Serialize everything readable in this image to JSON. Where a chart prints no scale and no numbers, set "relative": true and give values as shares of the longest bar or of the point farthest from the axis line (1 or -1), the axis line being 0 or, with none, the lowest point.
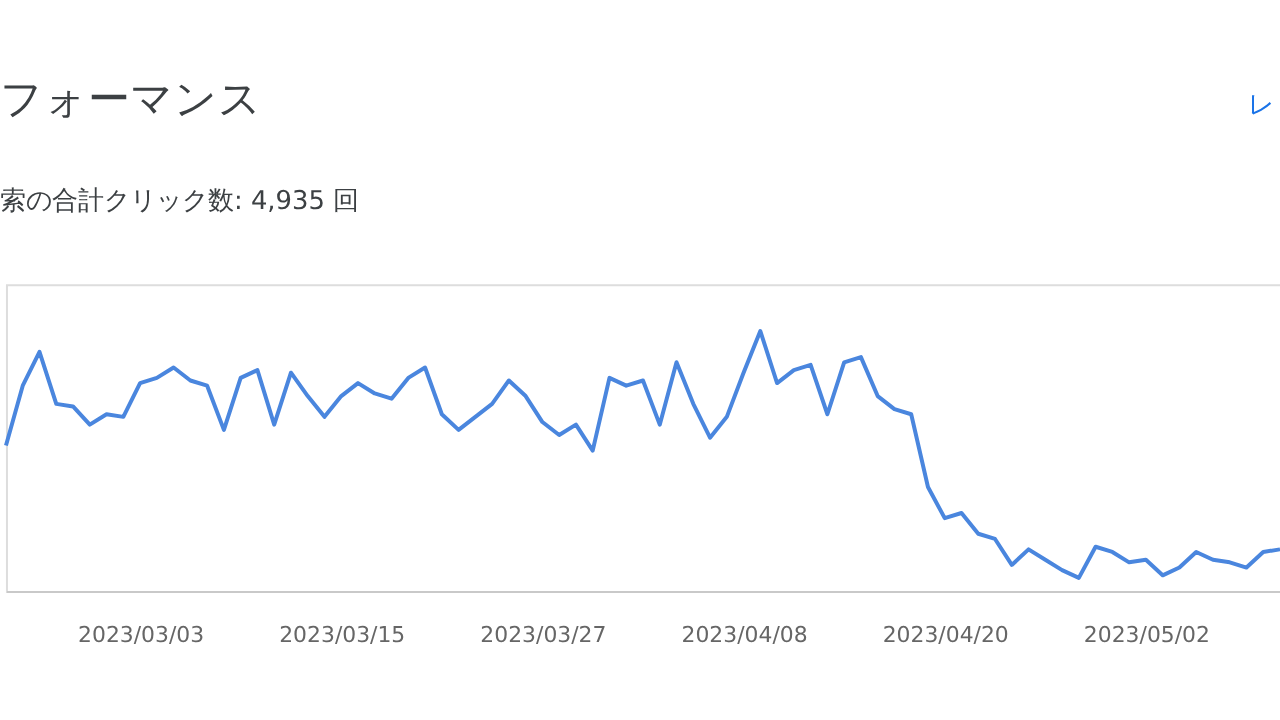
{
  "chart_data": {
    "type": "line",
    "title": "フォーマンス",
    "subtitle": "索の合計クリック数: 4,935 回",
    "annotations": [
      "レ"
    ],
    "relative": true,
    "marker": "none",
    "line_style": "solid",
    "x": [
      "2023-02-23",
      "2023-02-24",
      "2023-02-25",
      "2023-02-26",
      "2023-02-27",
      "2023-02-28",
      "2023-03-01",
      "2023-03-02",
      "2023-03-03",
      "2023-03-04",
      "2023-03-05",
      "2023-03-06",
      "2023-03-07",
      "2023-03-08",
      "2023-03-09",
      "2023-03-10",
      "2023-03-11",
      "2023-03-12",
      "2023-03-13",
      "2023-03-14",
      "2023-03-15",
      "2023-03-16",
      "2023-03-17",
      "2023-03-18",
      "2023-03-19",
      "2023-03-20",
      "2023-03-21",
      "2023-03-22",
      "2023-03-23",
      "2023-03-24",
      "2023-03-25",
      "2023-03-26",
      "2023-03-27",
      "2023-03-28",
      "2023-03-29",
      "2023-03-30",
      "2023-03-31",
      "2023-04-01",
      "2023-04-02",
      "2023-04-03",
      "2023-04-04",
      "2023-04-05",
      "2023-04-06",
      "2023-04-07",
      "2023-04-08",
      "2023-04-09",
      "2023-04-10",
      "2023-04-11",
      "2023-04-12",
      "2023-04-13",
      "2023-04-14",
      "2023-04-15",
      "2023-04-16",
      "2023-04-17",
      "2023-04-18",
      "2023-04-19",
      "2023-04-20",
      "2023-04-21",
      "2023-04-22",
      "2023-04-23",
      "2023-04-24",
      "2023-04-25",
      "2023-04-26",
      "2023-04-27",
      "2023-04-28",
      "2023-04-29",
      "2023-04-30",
      "2023-05-01",
      "2023-05-02",
      "2023-05-03",
      "2023-05-04",
      "2023-05-05",
      "2023-05-06",
      "2023-05-07",
      "2023-05-08",
      "2023-05-09",
      "2023-05-10"
    ],
    "xlim": [
      "2023-02-23",
      "2023-05-10"
    ],
    "xticks": [
      {
        "value": "2023-03-03",
        "label": "2023/03/03"
      },
      {
        "value": "2023-03-15",
        "label": "2023/03/15"
      },
      {
        "value": "2023-03-27",
        "label": "2023/03/27"
      },
      {
        "value": "2023-04-08",
        "label": "2023/04/08"
      },
      {
        "value": "2023-04-20",
        "label": "2023/04/20"
      },
      {
        "value": "2023-05-02",
        "label": "2023/05/02"
      }
    ],
    "series": [
      {
        "color": "#4a86de",
        "values": [
          0.56,
          0.79,
          0.92,
          0.72,
          0.71,
          0.64,
          0.68,
          0.67,
          0.8,
          0.82,
          0.86,
          0.81,
          0.79,
          0.62,
          0.82,
          0.85,
          0.64,
          0.84,
          0.75,
          0.67,
          0.75,
          0.8,
          0.76,
          0.74,
          0.82,
          0.86,
          0.68,
          0.62,
          0.67,
          0.72,
          0.81,
          0.75,
          0.65,
          0.6,
          0.64,
          0.54,
          0.82,
          0.79,
          0.81,
          0.64,
          0.88,
          0.72,
          0.59,
          0.67,
          0.84,
          1,
          0.8,
          0.85,
          0.87,
          0.68,
          0.88,
          0.9,
          0.75,
          0.7,
          0.68,
          0.4,
          0.28,
          0.3,
          0.22,
          0.2,
          0.1,
          0.16,
          0.12,
          0.08,
          0.05,
          0.17,
          0.15,
          0.11,
          0.12,
          0.06,
          0.09,
          0.15,
          0.12,
          0.11,
          0.09,
          0.15,
          0.16
        ]
      }
    ]
  }
}
